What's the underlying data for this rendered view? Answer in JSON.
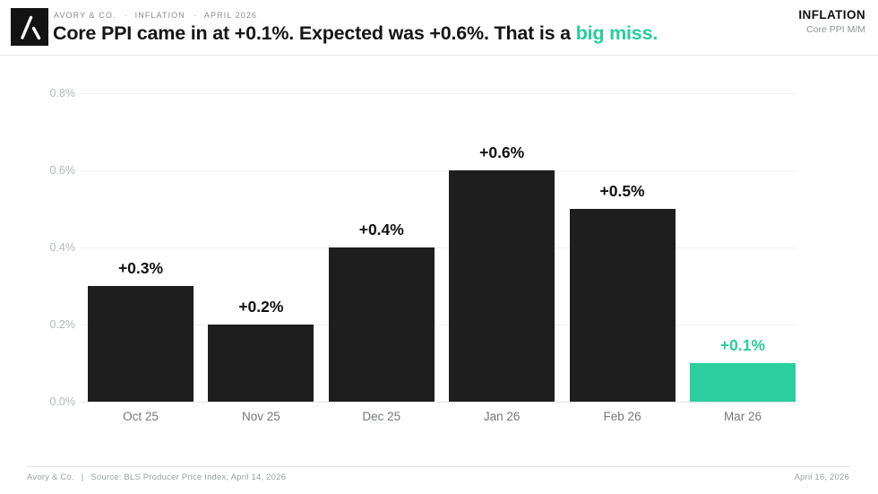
{
  "header": {
    "eyebrow": {
      "brand": "AVORY & CO.",
      "separator": "·",
      "section": "INFLATION",
      "period": "APRIL 2026"
    },
    "title_main": "Core PPI came in at +0.1%. Expected was +0.6%. That is a ",
    "title_highlight": "big miss.",
    "corner_title": "INFLATION",
    "corner_subtitle": "Core PPI M/M"
  },
  "chart_data": {
    "type": "bar",
    "title": "Core PPI came in at +0.1%. Expected was +0.6%. That is a big miss.",
    "xlabel": "",
    "ylabel": "",
    "categories": [
      "Oct 25",
      "Nov 25",
      "Dec 25",
      "Jan 26",
      "Feb 26",
      "Mar 26"
    ],
    "values": [
      0.3,
      0.2,
      0.4,
      0.6,
      0.5,
      0.1
    ],
    "ylim": [
      0,
      0.8
    ],
    "yticks": [
      0,
      0.2,
      0.4,
      0.6,
      0.8
    ],
    "ytick_labels": [
      "0.0%",
      "0.2%",
      "0.4%",
      "0.6%",
      "0.8%"
    ],
    "grid": true,
    "legend": false,
    "bar_color": "#1e1e1e",
    "highlight_color": "#2bce9c",
    "points": [
      {
        "month": "Oct 25",
        "value": 0.3,
        "label": "+0.3%",
        "color": "#1e1e1e",
        "label_color": "#111111"
      },
      {
        "month": "Nov 25",
        "value": 0.2,
        "label": "+0.2%",
        "color": "#1e1e1e",
        "label_color": "#111111"
      },
      {
        "month": "Dec 25",
        "value": 0.4,
        "label": "+0.4%",
        "color": "#1e1e1e",
        "label_color": "#111111"
      },
      {
        "month": "Jan 26",
        "value": 0.6,
        "label": "+0.6%",
        "color": "#1e1e1e",
        "label_color": "#111111"
      },
      {
        "month": "Feb 26",
        "value": 0.5,
        "label": "+0.5%",
        "color": "#1e1e1e",
        "label_color": "#111111"
      },
      {
        "month": "Mar 26",
        "value": 0.1,
        "label": "+0.1%",
        "color": "#2bce9c",
        "label_color": "#2bce9c"
      }
    ]
  },
  "footer": {
    "brand": "Avory & Co.",
    "divider": "|",
    "source": "Source: BLS Producer Price Index, April 14, 2026",
    "right": "April 16, 2026"
  }
}
